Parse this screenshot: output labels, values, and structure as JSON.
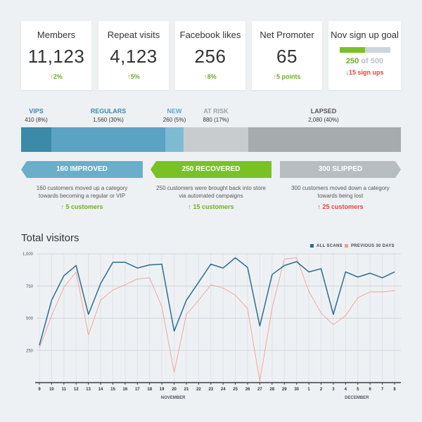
{
  "kpis": [
    {
      "label": "Members",
      "value": "11,123",
      "change": "↑2%",
      "dir": "up"
    },
    {
      "label": "Repeat visits",
      "value": "4,123",
      "change": "↑5%",
      "dir": "up"
    },
    {
      "label": "Facebook likes",
      "value": "256",
      "change": "↑8%",
      "dir": "up"
    },
    {
      "label": "Net Promoter",
      "value": "65",
      "change": "↑5 points",
      "dir": "up"
    }
  ],
  "goal": {
    "label": "Nov sign up goal",
    "current": "250",
    "of_text": "of 500",
    "progress": 0.5,
    "change": "↓15 sign ups"
  },
  "segments": [
    {
      "name": "VIPS",
      "count": "410 (8%)",
      "color": "#3b8aa8",
      "label_color": "#3b8aa8"
    },
    {
      "name": "REGULARS",
      "count": "1,560 (30%)",
      "color": "#5aa3c2",
      "label_color": "#3b8aa8"
    },
    {
      "name": "NEW",
      "count": "260 (5%)",
      "color": "#7dbbd3",
      "label_color": "#5aa9c8"
    },
    {
      "name": "AT RISK",
      "count": "880 (17%)",
      "color": "#c8ccce",
      "label_color": "#9aa3a8"
    },
    {
      "name": "LAPSED",
      "count": "2,080 (40%)",
      "color": "#a6abad",
      "label_color": "#555555"
    }
  ],
  "flows": [
    {
      "label": "160 IMPROVED",
      "desc1": "160 customers moved up a category",
      "desc2": "towards becoming a regular or VIP",
      "count": "↑ 5 customers",
      "dir": "up",
      "color": "#6aaec9"
    },
    {
      "label": "250 RECOVERED",
      "desc1": "250 customers were brought back into store",
      "desc2": "via automated campaigns",
      "count": "↑ 15 customers",
      "dir": "up",
      "color": "#79c125"
    },
    {
      "label": "300 SLIPPED",
      "desc1": "300 customers moved down a category",
      "desc2": "towards being lost",
      "count": "↑ 25 customers",
      "dir": "down",
      "color": "#b7bec2"
    }
  ],
  "chart_data": {
    "type": "line",
    "title": "Total visitors",
    "x": [
      "9",
      "10",
      "11",
      "12",
      "13",
      "14",
      "15",
      "16",
      "17",
      "18",
      "19",
      "20",
      "21",
      "22",
      "23",
      "24",
      "25",
      "26",
      "27",
      "28",
      "29",
      "30",
      "1",
      "2",
      "3",
      "4",
      "5",
      "6",
      "7",
      "8"
    ],
    "month_labels": [
      {
        "text": "NOVEMBER",
        "at": "19"
      },
      {
        "text": "DECEMBER",
        "at": "4"
      }
    ],
    "ylim": [
      0,
      1000
    ],
    "yticks": [
      "250",
      "500",
      "750",
      "1,000"
    ],
    "ytick_values": [
      250,
      500,
      750,
      1000
    ],
    "series": [
      {
        "name": "ALL SCANS",
        "color": "#2f6c8d",
        "values": [
          290,
          640,
          830,
          910,
          530,
          770,
          935,
          935,
          890,
          915,
          920,
          400,
          640,
          780,
          920,
          890,
          970,
          895,
          440,
          840,
          910,
          940,
          860,
          885,
          530,
          860,
          820,
          850,
          815,
          860
        ]
      },
      {
        "name": "PREVIOUS 30 DAYS",
        "color": "#f0a090",
        "values": [
          270,
          520,
          740,
          860,
          370,
          640,
          720,
          760,
          805,
          815,
          590,
          80,
          530,
          640,
          760,
          735,
          680,
          575,
          10,
          580,
          960,
          970,
          710,
          540,
          450,
          520,
          660,
          705,
          705,
          715
        ]
      }
    ],
    "grid": true,
    "legend_position": "top-right"
  }
}
